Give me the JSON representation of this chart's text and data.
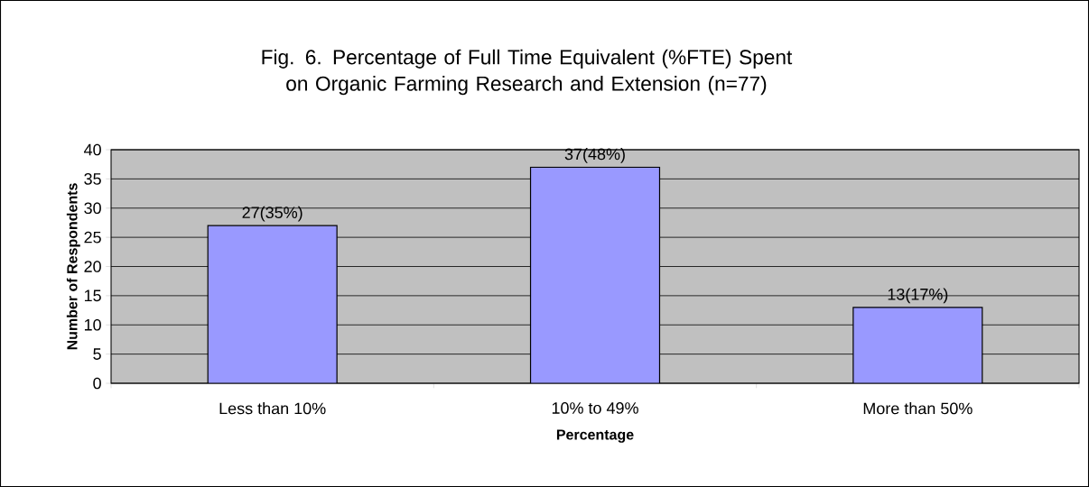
{
  "chart_data": {
    "type": "bar",
    "title": "Fig. 6. Percentage of Full Time Equivalent (%FTE) Spent on Organic Farming Research and Extension (n=77)",
    "xlabel": "Percentage",
    "ylabel": "Number of Respondents",
    "categories": [
      "Less than 10%",
      "10% to 49%",
      "More than 50%"
    ],
    "values": [
      27,
      37,
      13
    ],
    "value_labels": [
      "27(35%)",
      "37(48%)",
      "13(17%)"
    ],
    "color": "#9999ff",
    "ylim": [
      0,
      40
    ],
    "yticks": [
      0,
      5,
      10,
      15,
      20,
      25,
      30,
      35,
      40
    ],
    "grid": "y"
  }
}
